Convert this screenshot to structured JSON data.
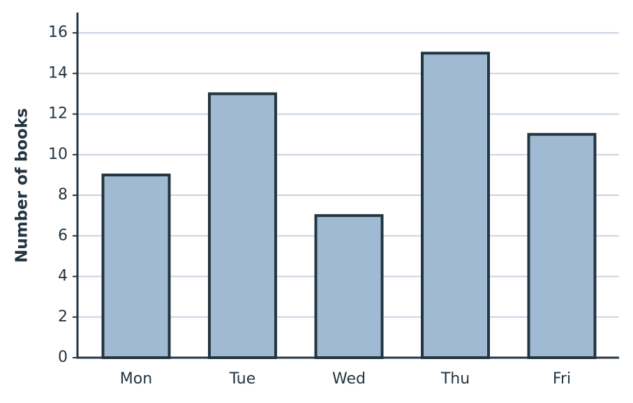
{
  "chart_data": {
    "type": "bar",
    "y_label": "Number of books",
    "categories": [
      "Mon",
      "Tue",
      "Wed",
      "Thu",
      "Fri"
    ],
    "values": [
      9,
      13,
      7,
      15,
      11
    ],
    "color": "#a0bad3",
    "edge_color": "#243540",
    "ylim": [
      0,
      17
    ],
    "yticks": [
      0,
      2,
      4,
      6,
      8,
      10,
      12,
      14,
      16
    ],
    "grid": true
  }
}
